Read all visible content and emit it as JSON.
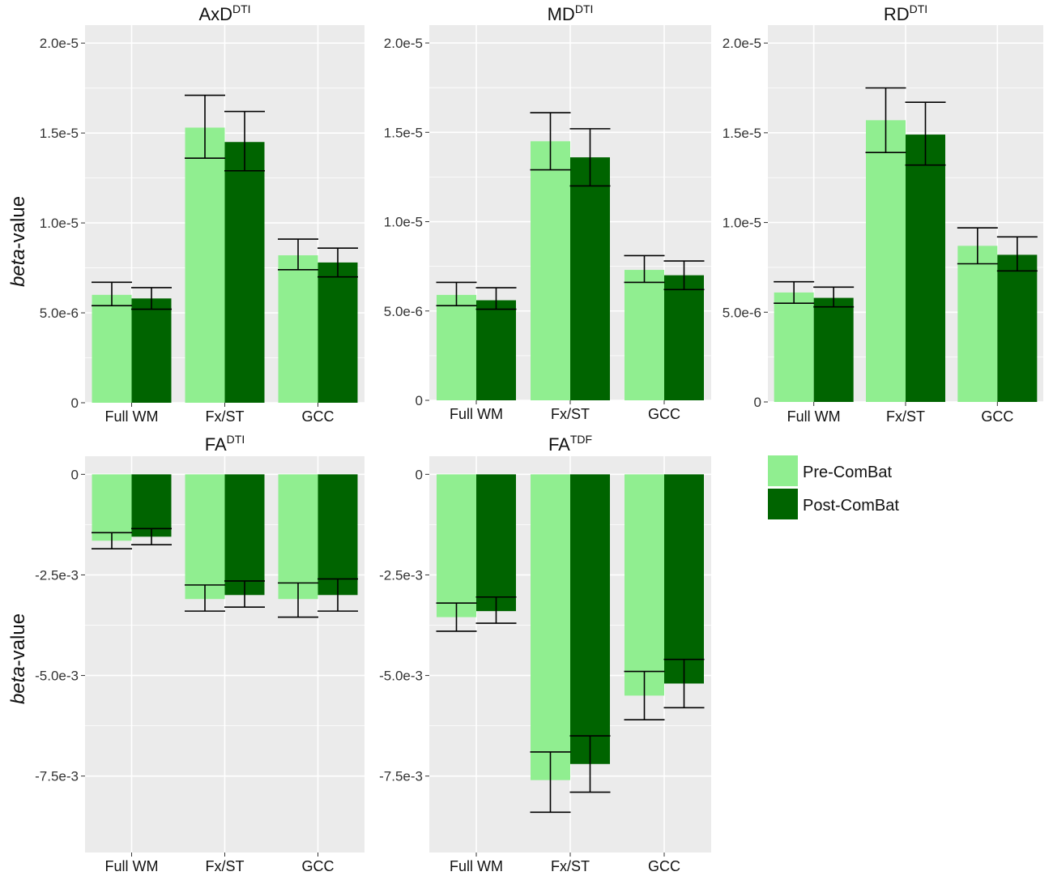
{
  "chart_data": [
    {
      "type": "bar",
      "title": "AxD",
      "title_sup": "DTI",
      "ylabel_italic": "beta",
      "ylabel_rest": "-value",
      "categories": [
        "Full WM",
        "Fx/ST",
        "GCC"
      ],
      "ylim": [
        0,
        2.1e-05
      ],
      "yticks": [
        0,
        5e-06,
        1e-05,
        1.5e-05,
        2e-05
      ],
      "ytick_labels": [
        "0",
        "5.0e-6",
        "1.0e-5",
        "1.5e-5",
        "2.0e-5"
      ],
      "series": [
        {
          "name": "Pre-ComBat",
          "values": [
            6e-06,
            1.53e-05,
            8.2e-06
          ],
          "err_low": [
            5.4e-06,
            1.36e-05,
            7.4e-06
          ],
          "err_high": [
            6.7e-06,
            1.71e-05,
            9.1e-06
          ]
        },
        {
          "name": "Post-ComBat",
          "values": [
            5.8e-06,
            1.45e-05,
            7.8e-06
          ],
          "err_low": [
            5.2e-06,
            1.29e-05,
            7e-06
          ],
          "err_high": [
            6.4e-06,
            1.62e-05,
            8.6e-06
          ]
        }
      ]
    },
    {
      "type": "bar",
      "title": "MD",
      "title_sup": "DTI",
      "categories": [
        "Full WM",
        "Fx/ST",
        "GCC"
      ],
      "ylim": [
        0,
        2.1e-05
      ],
      "yticks": [
        0,
        5e-06,
        1e-05,
        1.5e-05,
        2e-05
      ],
      "ytick_labels": [
        "0",
        "5.0e-6",
        "1.0e-5",
        "1.5e-5",
        "2.0e-5"
      ],
      "series": [
        {
          "name": "Pre-ComBat",
          "values": [
            5.9e-06,
            1.45e-05,
            7.3e-06
          ],
          "err_low": [
            5.3e-06,
            1.29e-05,
            6.6e-06
          ],
          "err_high": [
            6.6e-06,
            1.61e-05,
            8.1e-06
          ]
        },
        {
          "name": "Post-ComBat",
          "values": [
            5.6e-06,
            1.36e-05,
            7e-06
          ],
          "err_low": [
            5.1e-06,
            1.2e-05,
            6.2e-06
          ],
          "err_high": [
            6.3e-06,
            1.52e-05,
            7.8e-06
          ]
        }
      ]
    },
    {
      "type": "bar",
      "title": "RD",
      "title_sup": "DTI",
      "categories": [
        "Full WM",
        "Fx/ST",
        "GCC"
      ],
      "ylim": [
        0,
        2.1e-05
      ],
      "yticks": [
        0,
        5e-06,
        1e-05,
        1.5e-05,
        2e-05
      ],
      "ytick_labels": [
        "0",
        "5.0e-6",
        "1.0e-5",
        "1.5e-5",
        "2.0e-5"
      ],
      "series": [
        {
          "name": "Pre-ComBat",
          "values": [
            6.1e-06,
            1.57e-05,
            8.7e-06
          ],
          "err_low": [
            5.5e-06,
            1.39e-05,
            7.7e-06
          ],
          "err_high": [
            6.7e-06,
            1.75e-05,
            9.7e-06
          ]
        },
        {
          "name": "Post-ComBat",
          "values": [
            5.8e-06,
            1.49e-05,
            8.2e-06
          ],
          "err_low": [
            5.3e-06,
            1.32e-05,
            7.3e-06
          ],
          "err_high": [
            6.4e-06,
            1.67e-05,
            9.2e-06
          ]
        }
      ]
    },
    {
      "type": "bar",
      "title": "FA",
      "title_sup": "DTI",
      "ylabel_italic": "beta",
      "ylabel_rest": "-value",
      "categories": [
        "Full WM",
        "Fx/ST",
        "GCC"
      ],
      "ylim": [
        -0.0094,
        0.00045
      ],
      "yticks": [
        0,
        -0.0025,
        -0.005,
        -0.0075
      ],
      "ytick_labels": [
        "0",
        "-2.5e-3",
        "-5.0e-3",
        "-7.5e-3"
      ],
      "series": [
        {
          "name": "Pre-ComBat",
          "values": [
            -0.00165,
            -0.0031,
            -0.0031
          ],
          "err_low": [
            -0.00185,
            -0.0034,
            -0.00355
          ],
          "err_high": [
            -0.00145,
            -0.00275,
            -0.0027
          ]
        },
        {
          "name": "Post-ComBat",
          "values": [
            -0.00155,
            -0.003,
            -0.003
          ],
          "err_low": [
            -0.00175,
            -0.0033,
            -0.0034
          ],
          "err_high": [
            -0.00135,
            -0.00265,
            -0.0026
          ]
        }
      ]
    },
    {
      "type": "bar",
      "title": "FA",
      "title_sup": "TDF",
      "categories": [
        "Full WM",
        "Fx/ST",
        "GCC"
      ],
      "ylim": [
        -0.0094,
        0.00045
      ],
      "yticks": [
        0,
        -0.0025,
        -0.005,
        -0.0075
      ],
      "ytick_labels": [
        "0",
        "-2.5e-3",
        "-5.0e-3",
        "-7.5e-3"
      ],
      "series": [
        {
          "name": "Pre-ComBat",
          "values": [
            -0.00355,
            -0.0076,
            -0.0055
          ],
          "err_low": [
            -0.0039,
            -0.0084,
            -0.0061
          ],
          "err_high": [
            -0.0032,
            -0.0069,
            -0.0049
          ]
        },
        {
          "name": "Post-ComBat",
          "values": [
            -0.0034,
            -0.0072,
            -0.0052
          ],
          "err_low": [
            -0.0037,
            -0.0079,
            -0.0058
          ],
          "err_high": [
            -0.00305,
            -0.0065,
            -0.0046
          ]
        }
      ]
    }
  ],
  "legend": {
    "items": [
      {
        "label": "Pre-ComBat",
        "color": "#90EE90"
      },
      {
        "label": "Post-ComBat",
        "color": "#006400"
      }
    ]
  },
  "colors": {
    "panel_bg": "#EBEBEB",
    "grid": "#FFFFFF",
    "pre": "#90EE90",
    "post": "#006400",
    "errorbar": "#000000"
  }
}
